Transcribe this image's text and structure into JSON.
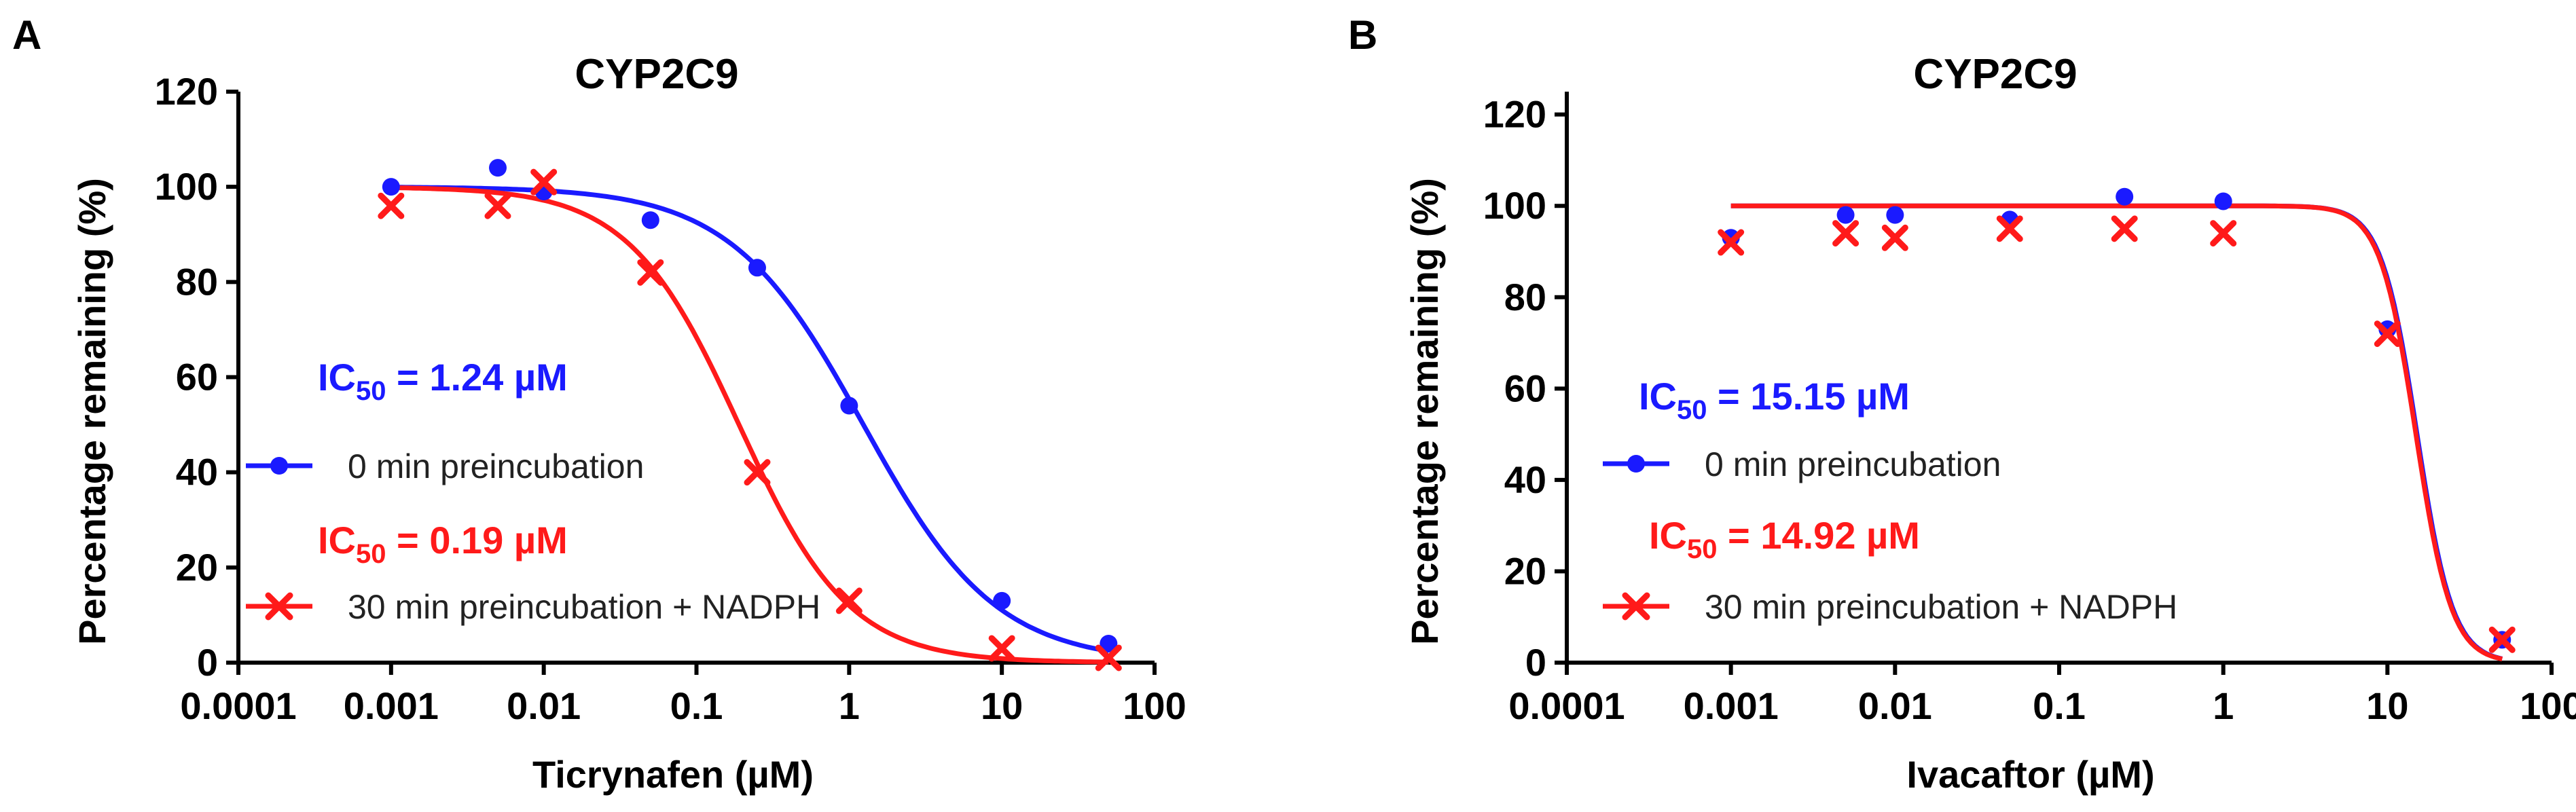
{
  "figure": {
    "panels": [
      {
        "letter": "A",
        "ic50_blue": {
          "prefix": "IC",
          "sub": "50",
          "suffix": " = 1.24 µM",
          "color": "#1a1aff"
        },
        "ic50_red": {
          "prefix": "IC",
          "sub": "50",
          "suffix": " = 0.19 µM",
          "color": "#ff1a1a"
        }
      },
      {
        "letter": "B",
        "ic50_blue": {
          "prefix": "IC",
          "sub": "50",
          "suffix": " = 15.15 µM",
          "color": "#1a1aff"
        },
        "ic50_red": {
          "prefix": "IC",
          "sub": "50",
          "suffix": " = 14.92 µM",
          "color": "#ff1a1a"
        }
      }
    ]
  },
  "chart_data": [
    {
      "type": "scatter",
      "title": "CYP2C9",
      "xlabel": "Ticrynafen (µM)",
      "ylabel": "Percentage remaining (%)",
      "xscale": "log",
      "xlim": [
        0.0001,
        100
      ],
      "ylim": [
        0,
        120
      ],
      "xticks": [
        0.0001,
        0.001,
        0.01,
        0.1,
        1,
        10,
        100
      ],
      "xtick_labels": [
        "0.0001",
        "0.001",
        "0.01",
        "0.1",
        "1",
        "10",
        "100"
      ],
      "yticks": [
        0,
        20,
        40,
        60,
        80,
        100,
        120
      ],
      "ytick_labels": [
        "0",
        "20",
        "40",
        "60",
        "80",
        "100",
        "120"
      ],
      "legend_position": "left-center",
      "series": [
        {
          "name": "0 min preincubation",
          "marker": "circle",
          "color": "#1a1aff",
          "x": [
            0.001,
            0.005,
            0.01,
            0.05,
            0.25,
            1,
            10,
            50
          ],
          "y": [
            100,
            104,
            99,
            93,
            83,
            54,
            13,
            4
          ],
          "fit": {
            "top": 100,
            "bottom": 0,
            "ic50": 1.24,
            "hill": 1
          }
        },
        {
          "name": "30 min preincubation + NADPH",
          "marker": "x",
          "color": "#ff1a1a",
          "x": [
            0.001,
            0.005,
            0.01,
            0.05,
            0.25,
            1,
            10,
            50
          ],
          "y": [
            96,
            96,
            101,
            82,
            40,
            13,
            3,
            1
          ],
          "fit": {
            "top": 100,
            "bottom": 0,
            "ic50": 0.19,
            "hill": 1.2
          }
        }
      ]
    },
    {
      "type": "scatter",
      "title": "CYP2C9",
      "xlabel": "Ivacaftor (µM)",
      "ylabel": "Percentage remaining (%)",
      "xscale": "log",
      "xlim": [
        0.0001,
        100
      ],
      "ylim": [
        0,
        125
      ],
      "xticks": [
        0.0001,
        0.001,
        0.01,
        0.1,
        1,
        10,
        100
      ],
      "xtick_labels": [
        "0.0001",
        "0.001",
        "0.01",
        "0.1",
        "1",
        "10",
        "100"
      ],
      "yticks": [
        0,
        20,
        40,
        60,
        80,
        100,
        120
      ],
      "ytick_labels": [
        "0",
        "20",
        "40",
        "60",
        "80",
        "100",
        "120"
      ],
      "legend_position": "left-center",
      "series": [
        {
          "name": "0 min preincubation",
          "marker": "circle",
          "color": "#1a1aff",
          "x": [
            0.001,
            0.005,
            0.01,
            0.05,
            0.25,
            1,
            10,
            50
          ],
          "y": [
            93,
            98,
            98,
            97,
            102,
            101,
            73,
            5
          ],
          "fit": {
            "top": 100,
            "bottom": 0,
            "ic50": 15.15,
            "hill": 4
          }
        },
        {
          "name": "30 min preincubation + NADPH",
          "marker": "x",
          "color": "#ff1a1a",
          "x": [
            0.001,
            0.005,
            0.01,
            0.05,
            0.25,
            1,
            10,
            50
          ],
          "y": [
            92,
            94,
            93,
            95,
            95,
            94,
            72,
            5
          ],
          "fit": {
            "top": 100,
            "bottom": 0,
            "ic50": 14.92,
            "hill": 4
          }
        }
      ]
    }
  ]
}
